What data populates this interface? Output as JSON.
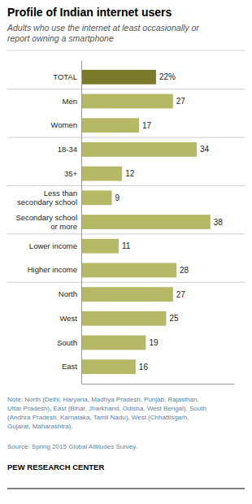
{
  "chart_data": {
    "type": "bar",
    "orientation": "horizontal",
    "title": "Profile of Indian internet users",
    "subtitle": "Adults who use the internet at least occasionally or\nreport owning a smartphone",
    "categories": [
      "TOTAL",
      "Men",
      "Women",
      "18-34",
      "35+",
      "Less than\nsecondary school",
      "Secondary school\nor more",
      "Lower income",
      "Higher income",
      "North",
      "West",
      "South",
      "East"
    ],
    "values": [
      22,
      27,
      17,
      34,
      12,
      9,
      38,
      11,
      28,
      27,
      25,
      19,
      16
    ],
    "value_labels": [
      "22%",
      "27",
      "17",
      "34",
      "12",
      "9",
      "38",
      "11",
      "28",
      "27",
      "25",
      "19",
      "16"
    ],
    "colors": [
      "#7a7a2a",
      "#b5b865",
      "#b5b865",
      "#b5b865",
      "#b5b865",
      "#b5b865",
      "#b5b865",
      "#b5b865",
      "#b5b865",
      "#b5b865",
      "#b5b865",
      "#b5b865",
      "#b5b865"
    ],
    "data_labels": true,
    "tick_labels": "y",
    "xlim": [
      0,
      45
    ],
    "note": "Note: North (Delhi, Haryana, Madhya Pradesh, Punjab, Rajasthan,\nUttar Pradesh), East (Bihar, Jharkhand, Odisha, West Bengal), South\n(Andhra Pradesh, Karnataka, Tamil Nadu), West (Chhattisgarh,\nGujarat, Maharashtra).",
    "source": "Source: Spring 2015 Global Attitudes Survey.",
    "credit": "PEW RESEARCH CENTER"
  }
}
